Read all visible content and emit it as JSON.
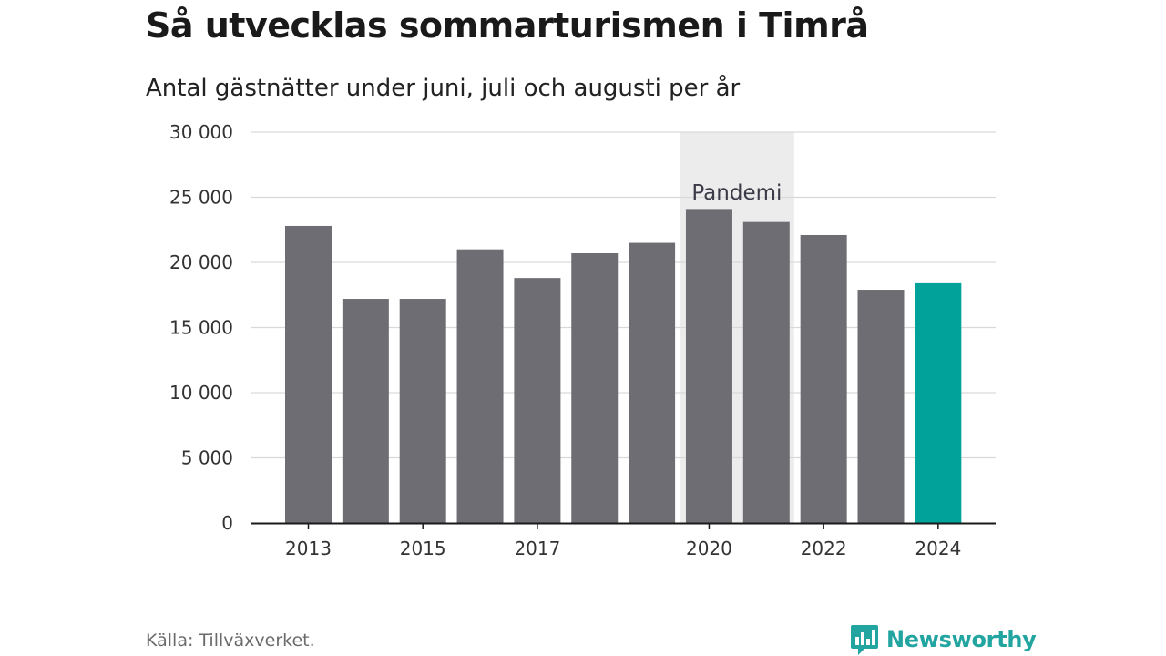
{
  "chart_data": {
    "type": "bar",
    "title": "Så utvecklas sommarturismen i Timrå",
    "subtitle": "Antal gästnätter under juni, juli och augusti per år",
    "categories": [
      "2013",
      "2014",
      "2015",
      "2016",
      "2017",
      "2018",
      "2019",
      "2020",
      "2021",
      "2022",
      "2023",
      "2024"
    ],
    "values": [
      22800,
      17200,
      17200,
      21000,
      18800,
      20700,
      21500,
      24100,
      23100,
      22100,
      17900,
      18400
    ],
    "x_tick_labels": [
      "2013",
      "2015",
      "2017",
      "2020",
      "2022",
      "2024"
    ],
    "y_ticks": [
      0,
      5000,
      10000,
      15000,
      20000,
      25000,
      30000
    ],
    "y_tick_labels": [
      "0",
      "5 000",
      "10 000",
      "15 000",
      "20 000",
      "25 000",
      "30 000"
    ],
    "ylim": [
      0,
      30000
    ],
    "grid": true,
    "bar_color": "#6e6d73",
    "highlight_category": "2024",
    "highlight_color": "#00a29a",
    "annotation": {
      "label": "Pandemi",
      "from": "2020",
      "to": "2021",
      "color": "#ececec"
    }
  },
  "footer": {
    "source": "Källa: Tillväxverket.",
    "brand": "Newsworthy",
    "brand_color": "#22a5a0",
    "brand_icon": "newsworthy-logo-icon"
  }
}
